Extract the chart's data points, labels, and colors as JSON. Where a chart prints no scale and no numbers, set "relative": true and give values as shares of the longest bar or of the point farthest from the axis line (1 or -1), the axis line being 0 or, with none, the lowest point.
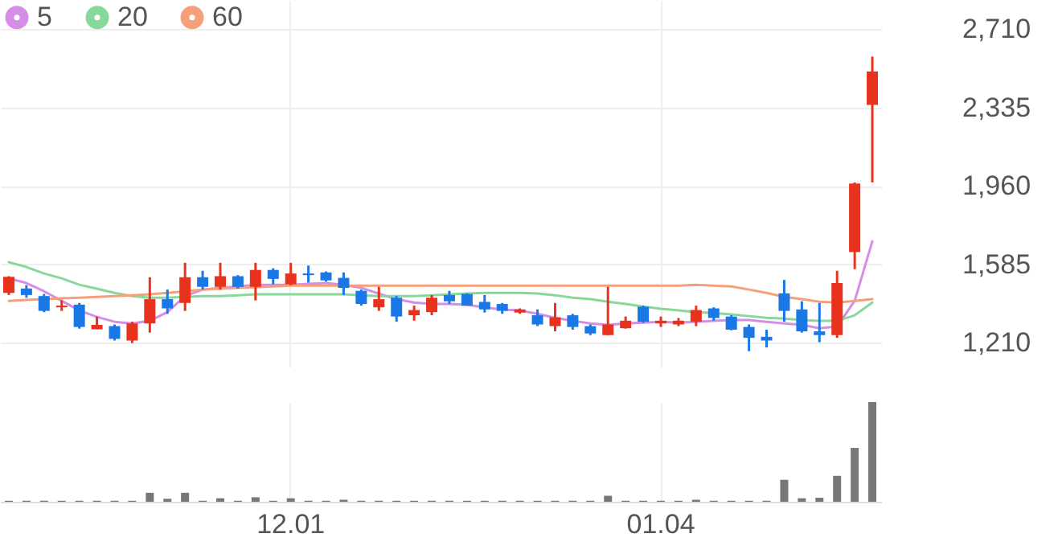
{
  "chart_data": [
    {
      "type": "candlestick",
      "categories": [
        null,
        null,
        null,
        null,
        null,
        null,
        null,
        null,
        null,
        null,
        null,
        null,
        null,
        null,
        null,
        null,
        "12.01",
        null,
        null,
        null,
        null,
        null,
        null,
        null,
        null,
        null,
        null,
        null,
        null,
        null,
        null,
        null,
        null,
        null,
        null,
        null,
        null,
        "01.04",
        null,
        null,
        null,
        null,
        null,
        null,
        null,
        null,
        null,
        null,
        null,
        null
      ],
      "ohlc": [
        [
          1448,
          1528,
          1438,
          1525
        ],
        [
          1469,
          1485,
          1425,
          1438
        ],
        [
          1433,
          1443,
          1356,
          1362
        ],
        [
          1379,
          1412,
          1362,
          1387
        ],
        [
          1392,
          1400,
          1277,
          1285
        ],
        [
          1274,
          1335,
          1274,
          1295
        ],
        [
          1289,
          1297,
          1220,
          1228
        ],
        [
          1220,
          1310,
          1208,
          1302
        ],
        [
          1302,
          1523,
          1258,
          1418
        ],
        [
          1418,
          1464,
          1348,
          1374
        ],
        [
          1400,
          1592,
          1362,
          1523
        ],
        [
          1523,
          1554,
          1464,
          1477
        ],
        [
          1477,
          1592,
          1464,
          1528
        ],
        [
          1528,
          1533,
          1469,
          1477
        ],
        [
          1477,
          1592,
          1412,
          1558
        ],
        [
          1558,
          1566,
          1489,
          1515
        ],
        [
          1489,
          1592,
          1485,
          1541
        ],
        [
          1541,
          1579,
          1497,
          1533
        ],
        [
          1546,
          1551,
          1502,
          1508
        ],
        [
          1520,
          1546,
          1438,
          1472
        ],
        [
          1458,
          1464,
          1387,
          1395
        ],
        [
          1379,
          1477,
          1362,
          1418
        ],
        [
          1425,
          1433,
          1310,
          1335
        ],
        [
          1341,
          1387,
          1315,
          1366
        ],
        [
          1356,
          1438,
          1341,
          1425
        ],
        [
          1438,
          1458,
          1395,
          1408
        ],
        [
          1443,
          1446,
          1387,
          1387
        ],
        [
          1405,
          1438,
          1354,
          1369
        ],
        [
          1395,
          1400,
          1348,
          1362
        ],
        [
          1354,
          1374,
          1348,
          1369
        ],
        [
          1341,
          1369,
          1289,
          1297
        ],
        [
          1289,
          1400,
          1264,
          1331
        ],
        [
          1341,
          1348,
          1272,
          1285
        ],
        [
          1289,
          1297,
          1246,
          1254
        ],
        [
          1246,
          1477,
          1246,
          1297
        ],
        [
          1279,
          1335,
          1277,
          1315
        ],
        [
          1382,
          1387,
          1305,
          1310
        ],
        [
          1302,
          1335,
          1285,
          1315
        ],
        [
          1297,
          1328,
          1289,
          1315
        ],
        [
          1310,
          1387,
          1289,
          1366
        ],
        [
          1374,
          1379,
          1315,
          1328
        ],
        [
          1335,
          1341,
          1269,
          1272
        ],
        [
          1285,
          1297,
          1169,
          1233
        ],
        [
          1238,
          1272,
          1187,
          1220
        ],
        [
          1446,
          1510,
          1310,
          1362
        ],
        [
          1369,
          1408,
          1258,
          1264
        ],
        [
          1264,
          1400,
          1212,
          1246
        ],
        [
          1246,
          1554,
          1233,
          1495
        ],
        [
          1643,
          1977,
          1562,
          1972
        ],
        [
          2348,
          2579,
          1977,
          2508
        ]
      ],
      "colors": [
        "#e8321e",
        "#1a78e6",
        "#1a78e6",
        "#e8321e",
        "#1a78e6",
        "#e8321e",
        "#1a78e6",
        "#e8321e",
        "#e8321e",
        "#1a78e6",
        "#e8321e",
        "#1a78e6",
        "#e8321e",
        "#1a78e6",
        "#e8321e",
        "#1a78e6",
        "#e8321e",
        "#1a78e6",
        "#1a78e6",
        "#1a78e6",
        "#1a78e6",
        "#e8321e",
        "#1a78e6",
        "#e8321e",
        "#e8321e",
        "#1a78e6",
        "#1a78e6",
        "#1a78e6",
        "#1a78e6",
        "#e8321e",
        "#1a78e6",
        "#e8321e",
        "#1a78e6",
        "#1a78e6",
        "#e8321e",
        "#e8321e",
        "#1a78e6",
        "#e8321e",
        "#e8321e",
        "#e8321e",
        "#1a78e6",
        "#1a78e6",
        "#1a78e6",
        "#1a78e6",
        "#1a78e6",
        "#1a78e6",
        "#1a78e6",
        "#e8321e",
        "#e8321e",
        "#e8321e"
      ],
      "series": [
        {
          "name": "5",
          "type": "line",
          "color": "#d48ee6",
          "values": [
            1518,
            1495,
            1456,
            1410,
            1364,
            1333,
            1310,
            1302,
            1314,
            1356,
            1433,
            1464,
            1472,
            1479,
            1487,
            1487,
            1487,
            1491,
            1495,
            1487,
            1472,
            1445,
            1418,
            1402,
            1395,
            1395,
            1391,
            1379,
            1368,
            1364,
            1348,
            1329,
            1314,
            1302,
            1295,
            1302,
            1306,
            1310,
            1306,
            1310,
            1314,
            1318,
            1318,
            1310,
            1302,
            1295,
            1279,
            1287,
            1410,
            1695
          ]
        },
        {
          "name": "20",
          "type": "line",
          "color": "#88d89a",
          "values": [
            1595,
            1572,
            1541,
            1518,
            1487,
            1468,
            1448,
            1433,
            1425,
            1425,
            1429,
            1433,
            1433,
            1437,
            1441,
            1441,
            1441,
            1441,
            1441,
            1441,
            1437,
            1433,
            1433,
            1433,
            1437,
            1441,
            1445,
            1448,
            1448,
            1448,
            1445,
            1437,
            1425,
            1418,
            1406,
            1395,
            1383,
            1372,
            1364,
            1356,
            1352,
            1345,
            1337,
            1329,
            1325,
            1318,
            1314,
            1314,
            1341,
            1402
          ]
        },
        {
          "name": "60",
          "type": "line",
          "color": "#f5a07a",
          "values": [
            1410,
            1414,
            1418,
            1422,
            1425,
            1429,
            1433,
            1437,
            1441,
            1448,
            1456,
            1464,
            1468,
            1472,
            1475,
            1479,
            1483,
            1483,
            1483,
            1483,
            1483,
            1483,
            1483,
            1483,
            1483,
            1483,
            1483,
            1483,
            1483,
            1483,
            1483,
            1483,
            1483,
            1483,
            1483,
            1483,
            1483,
            1483,
            1483,
            1487,
            1483,
            1479,
            1464,
            1448,
            1429,
            1418,
            1406,
            1402,
            1410,
            1418
          ]
        }
      ],
      "ylim": [
        1095,
        2850
      ],
      "yticks": [
        {
          "value": 1210,
          "label": "1,210"
        },
        {
          "value": 1585,
          "label": "1,585"
        },
        {
          "value": 1960,
          "label": "1,960"
        },
        {
          "value": 2335,
          "label": "2,335"
        },
        {
          "value": 2710,
          "label": "2,710"
        }
      ],
      "grid": true,
      "legend": "top left",
      "tick_labels": "y"
    },
    {
      "type": "bar",
      "categories": [
        null,
        null,
        null,
        null,
        null,
        null,
        null,
        null,
        null,
        null,
        null,
        null,
        null,
        null,
        null,
        null,
        "12.01",
        null,
        null,
        null,
        null,
        null,
        null,
        null,
        null,
        null,
        null,
        null,
        null,
        null,
        null,
        null,
        null,
        null,
        null,
        null,
        null,
        "01.04",
        null,
        null,
        null,
        null,
        null,
        null,
        null,
        null,
        null,
        null,
        null,
        null
      ],
      "series": [
        {
          "color": "#777777",
          "values": [
            0.01,
            0.01,
            0.01,
            0.01,
            0.01,
            0.01,
            0.01,
            0.01,
            0.09,
            0.03,
            0.09,
            0.01,
            0.035,
            0.01,
            0.045,
            0.01,
            0.035,
            0.01,
            0.01,
            0.02,
            0.01,
            0.01,
            0.01,
            0.01,
            0.01,
            0.01,
            0.01,
            0.01,
            0.01,
            0.01,
            0.01,
            0.01,
            0.01,
            0.01,
            0.06,
            0.01,
            0.01,
            0.01,
            0.01,
            0.02,
            0.01,
            0.01,
            0.01,
            0.01,
            0.22,
            0.035,
            0.04,
            0.26,
            0.54,
            1
          ]
        }
      ],
      "relative": true,
      "grid": "x",
      "tick_labels": "x"
    }
  ]
}
